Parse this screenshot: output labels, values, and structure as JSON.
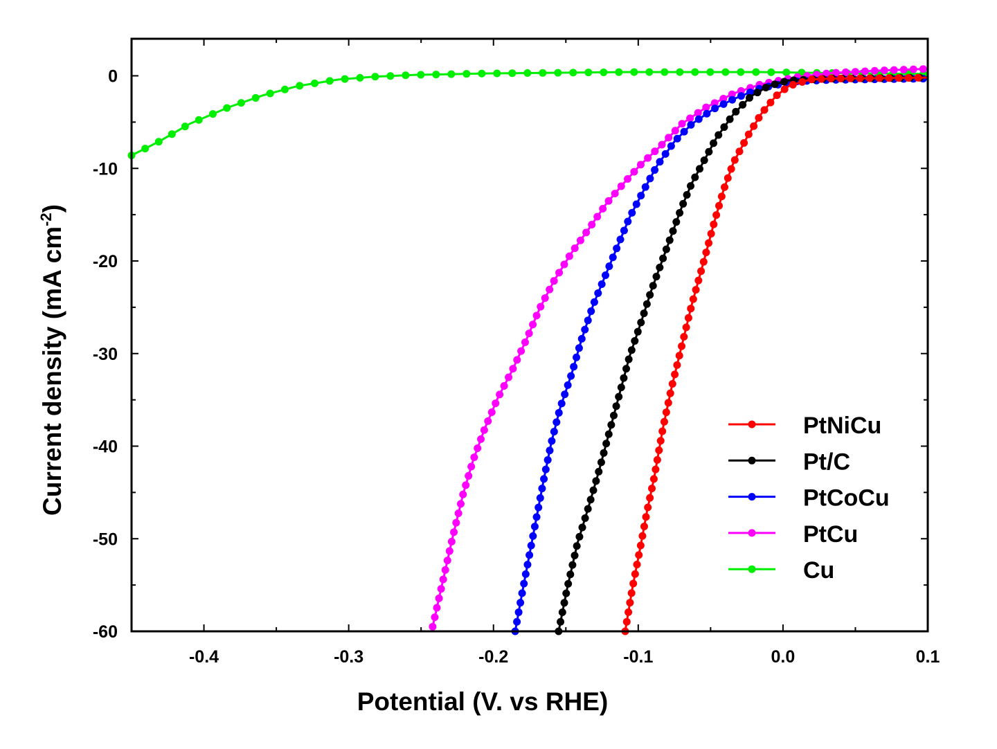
{
  "chart_data": {
    "type": "line",
    "title": "",
    "xlabel": "Potential (V. vs RHE)",
    "ylabel_main": "Current density (mA cm",
    "ylabel_sup": "-2",
    "ylabel_close": ")",
    "xlim": [
      -0.45,
      0.1
    ],
    "ylim": [
      -60,
      4
    ],
    "x_ticks": [
      -0.4,
      -0.3,
      -0.2,
      -0.1,
      0.0,
      0.1
    ],
    "x_tick_labels": [
      "-0.4",
      "-0.3",
      "-0.2",
      "-0.1",
      "0.0",
      "0.1"
    ],
    "y_ticks": [
      0,
      -10,
      -20,
      -30,
      -40,
      -50,
      -60
    ],
    "y_tick_labels": [
      "0",
      "-10",
      "-20",
      "-30",
      "-40",
      "-50",
      "-60"
    ],
    "grid": false,
    "legend_position": "bottom-right",
    "series": [
      {
        "name": "PtNiCu",
        "color": "#ff0000",
        "points": [
          [
            -0.109,
            -60
          ],
          [
            -0.104,
            -55.3
          ],
          [
            -0.0985,
            -50.9
          ],
          [
            -0.094,
            -47.1
          ],
          [
            -0.089,
            -43.4
          ],
          [
            -0.083,
            -38.1
          ],
          [
            -0.077,
            -33.7
          ],
          [
            -0.07,
            -29.2
          ],
          [
            -0.063,
            -24.7
          ],
          [
            -0.055,
            -20.2
          ],
          [
            -0.048,
            -16.1
          ],
          [
            -0.041,
            -12.3
          ],
          [
            -0.034,
            -9.3
          ],
          [
            -0.024,
            -6.4
          ],
          [
            -0.015,
            -4.1
          ],
          [
            -0.005,
            -2.2
          ],
          [
            0.004,
            -1.1
          ],
          [
            0.019,
            -0.4
          ],
          [
            0.033,
            -0.3
          ],
          [
            0.1,
            -0.2
          ]
        ]
      },
      {
        "name": "Pt/C",
        "color": "#000000",
        "points": [
          [
            -0.155,
            -60
          ],
          [
            -0.149,
            -55.3
          ],
          [
            -0.142,
            -50.5
          ],
          [
            -0.134,
            -46.4
          ],
          [
            -0.127,
            -42.6
          ],
          [
            -0.12,
            -38.5
          ],
          [
            -0.113,
            -34.4
          ],
          [
            -0.106,
            -30.3
          ],
          [
            -0.098,
            -26.6
          ],
          [
            -0.091,
            -23.2
          ],
          [
            -0.084,
            -20.2
          ],
          [
            -0.077,
            -17.2
          ],
          [
            -0.07,
            -14.2
          ],
          [
            -0.063,
            -11.6
          ],
          [
            -0.055,
            -9.3
          ],
          [
            -0.046,
            -6.7
          ],
          [
            -0.034,
            -4.1
          ],
          [
            -0.022,
            -2.2
          ],
          [
            -0.01,
            -1.1
          ],
          [
            0.004,
            -0.5
          ],
          [
            0.033,
            -0.3
          ],
          [
            0.1,
            -0.2
          ]
        ]
      },
      {
        "name": "PtCoCu",
        "color": "#0000ff",
        "points": [
          [
            -0.185,
            -60
          ],
          [
            -0.18,
            -55.7
          ],
          [
            -0.175,
            -51.6
          ],
          [
            -0.17,
            -47.5
          ],
          [
            -0.165,
            -43.4
          ],
          [
            -0.16,
            -39.6
          ],
          [
            -0.154,
            -35.9
          ],
          [
            -0.146,
            -32.2
          ],
          [
            -0.139,
            -28.4
          ],
          [
            -0.131,
            -24.7
          ],
          [
            -0.122,
            -21.3
          ],
          [
            -0.114,
            -18.3
          ],
          [
            -0.106,
            -15.3
          ],
          [
            -0.096,
            -12.3
          ],
          [
            -0.087,
            -9.7
          ],
          [
            -0.075,
            -7.1
          ],
          [
            -0.063,
            -5.2
          ],
          [
            -0.048,
            -3.6
          ],
          [
            -0.034,
            -2.5
          ],
          [
            -0.015,
            -1.3
          ],
          [
            0.009,
            -0.6
          ],
          [
            0.033,
            -0.45
          ],
          [
            0.1,
            -0.3
          ]
        ]
      },
      {
        "name": "PtCu",
        "color": "#ff00ff",
        "points": [
          [
            -0.242,
            -59.5
          ],
          [
            -0.235,
            -54.6
          ],
          [
            -0.228,
            -49.7
          ],
          [
            -0.221,
            -45.2
          ],
          [
            -0.214,
            -41.5
          ],
          [
            -0.206,
            -38.1
          ],
          [
            -0.197,
            -34.8
          ],
          [
            -0.187,
            -31.8
          ],
          [
            -0.177,
            -28.4
          ],
          [
            -0.168,
            -25.1
          ],
          [
            -0.158,
            -22.1
          ],
          [
            -0.146,
            -19.1
          ],
          [
            -0.134,
            -16.5
          ],
          [
            -0.122,
            -13.8
          ],
          [
            -0.11,
            -11.6
          ],
          [
            -0.099,
            -9.7
          ],
          [
            -0.084,
            -7.5
          ],
          [
            -0.07,
            -5.2
          ],
          [
            -0.053,
            -3.4
          ],
          [
            -0.034,
            -1.9
          ],
          [
            -0.015,
            -0.9
          ],
          [
            0.009,
            -0.15
          ],
          [
            0.033,
            0.3
          ],
          [
            0.071,
            0.6
          ],
          [
            0.1,
            0.75
          ]
        ]
      },
      {
        "name": "Cu",
        "color": "#00ee00",
        "points": [
          [
            -0.45,
            -8.6
          ],
          [
            -0.431,
            -7.1
          ],
          [
            -0.41,
            -5.2
          ],
          [
            -0.383,
            -3.4
          ],
          [
            -0.359,
            -2.1
          ],
          [
            -0.335,
            -1.1
          ],
          [
            -0.307,
            -0.4
          ],
          [
            -0.283,
            -0.1
          ],
          [
            -0.254,
            0.1
          ],
          [
            -0.206,
            0.25
          ],
          [
            -0.11,
            0.4
          ],
          [
            -0.015,
            0.4
          ],
          [
            0.033,
            0.3
          ],
          [
            0.1,
            0.2
          ]
        ]
      }
    ]
  }
}
